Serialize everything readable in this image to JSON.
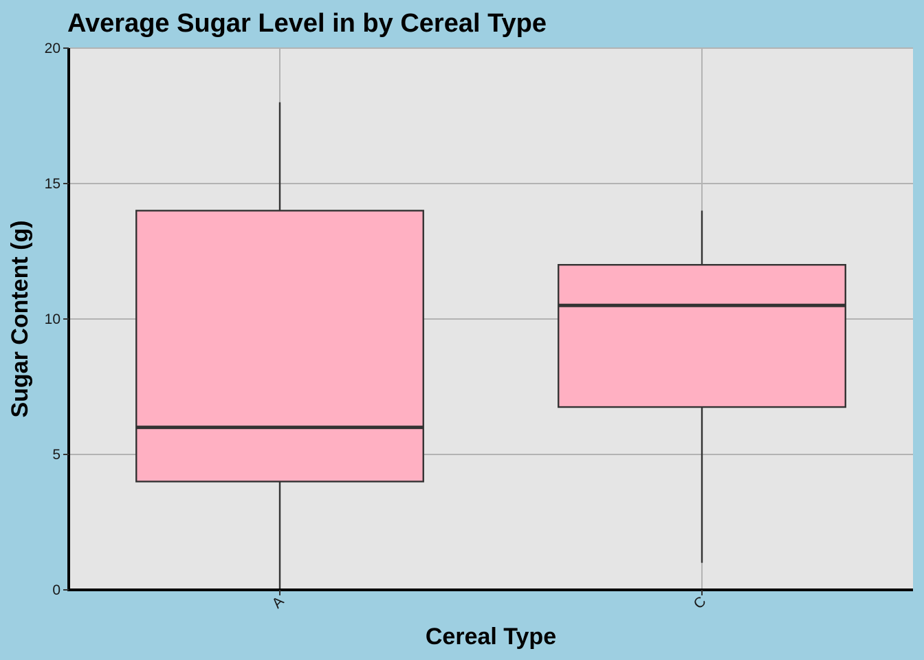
{
  "chart_data": {
    "type": "boxplot",
    "title": "Average Sugar Level in by Cereal Type",
    "xlabel": "Cereal Type",
    "ylabel": "Sugar Content (g)",
    "categories": [
      "A",
      "C"
    ],
    "boxes": [
      {
        "category": "A",
        "whisker_low": 0,
        "q1": 4,
        "median": 6,
        "q3": 14,
        "whisker_high": 18
      },
      {
        "category": "C",
        "whisker_low": 1,
        "q1": 6.75,
        "median": 10.5,
        "q3": 12,
        "whisker_high": 14
      }
    ],
    "yticks": [
      0,
      5,
      10,
      15,
      20
    ],
    "ylim": [
      0,
      20
    ],
    "grid": true,
    "legend": "none",
    "colors": {
      "background": "#9ecfe1",
      "panel": "#e5e5e5",
      "grid": "#b3b3b3",
      "box_fill": "#ffb0c2",
      "box_stroke": "#333333",
      "axis_line": "#000000"
    }
  }
}
